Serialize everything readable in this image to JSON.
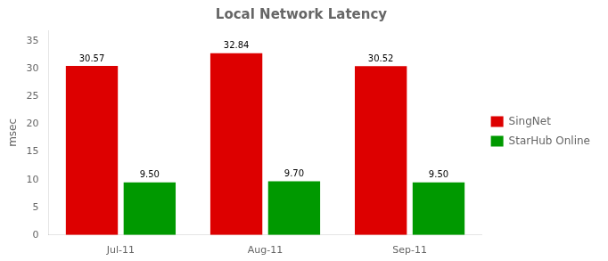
{
  "chart_data": {
    "type": "bar",
    "title": "Local Network Latency",
    "ylabel": "msec",
    "categories": [
      "Jul-11",
      "Aug-11",
      "Sep-11"
    ],
    "series": [
      {
        "name": "SingNet",
        "color": "#DD0000",
        "values": [
          30.57,
          32.84,
          30.52
        ],
        "value_labels": [
          "30.57",
          "32.84",
          "30.52"
        ]
      },
      {
        "name": "StarHub Online",
        "color": "#009900",
        "values": [
          9.5,
          9.7,
          9.5
        ],
        "value_labels": [
          "9.50",
          "9.70",
          "9.50"
        ]
      }
    ],
    "ylim": [
      0,
      37
    ],
    "yticks": [
      0,
      5,
      10,
      15,
      20,
      25,
      30,
      35
    ],
    "grid": false,
    "legend": "right",
    "data_labels": true
  }
}
